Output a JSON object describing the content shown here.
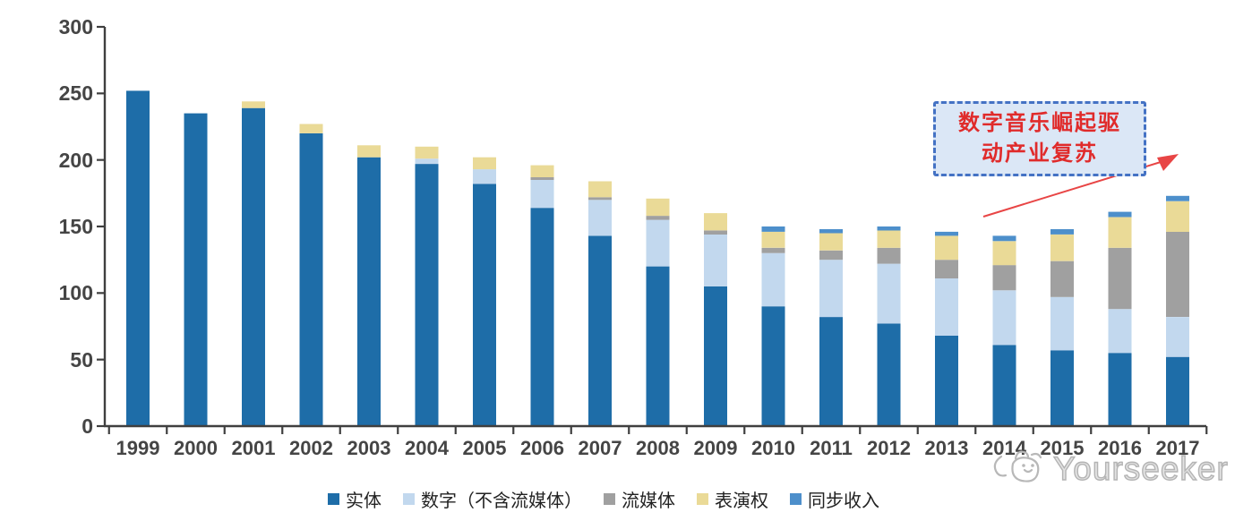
{
  "chart_data": {
    "type": "bar",
    "stacked": true,
    "title": "",
    "xlabel": "",
    "ylabel": "",
    "categories": [
      "1999",
      "2000",
      "2001",
      "2002",
      "2003",
      "2004",
      "2005",
      "2006",
      "2007",
      "2008",
      "2009",
      "2010",
      "2011",
      "2012",
      "2013",
      "2014",
      "2015",
      "2016",
      "2017"
    ],
    "series": [
      {
        "name": "实体",
        "color": "#1E6DA8",
        "values": [
          252,
          235,
          239,
          220,
          202,
          197,
          182,
          164,
          143,
          120,
          105,
          90,
          82,
          77,
          68,
          61,
          57,
          55,
          52
        ]
      },
      {
        "name": "数字（不含流媒体）",
        "color": "#C2D8EE",
        "values": [
          0,
          0,
          0,
          0,
          0,
          4,
          11,
          21,
          27,
          35,
          39,
          40,
          43,
          45,
          43,
          41,
          40,
          33,
          30
        ]
      },
      {
        "name": "流媒体",
        "color": "#A0A0A0",
        "values": [
          0,
          0,
          0,
          0,
          0,
          0,
          0,
          2,
          2,
          3,
          3,
          4,
          7,
          12,
          14,
          19,
          27,
          46,
          64
        ]
      },
      {
        "name": "表演权",
        "color": "#EADA97",
        "values": [
          0,
          0,
          5,
          7,
          9,
          9,
          9,
          9,
          12,
          13,
          13,
          12,
          13,
          13,
          18,
          18,
          20,
          23,
          23
        ]
      },
      {
        "name": "同步收入",
        "color": "#4D8FCB",
        "values": [
          0,
          0,
          0,
          0,
          0,
          0,
          0,
          0,
          0,
          0,
          0,
          4,
          3,
          3,
          3,
          4,
          4,
          4,
          4
        ]
      }
    ],
    "ylim": [
      0,
      300
    ],
    "yticks": [
      0,
      50,
      100,
      150,
      200,
      250,
      300
    ],
    "grid": false,
    "legend_position": "bottom",
    "axis_color": "#3F3F3F"
  },
  "annotation": {
    "line1": "数字音乐崛起驱",
    "line2": "动产业复苏",
    "text_color": "#E02B2B",
    "border_color": "#4472C4",
    "fill_color": "#DBE7F6",
    "arrow_color": "#E84545"
  },
  "watermark": {
    "text": "Yourseeker"
  }
}
